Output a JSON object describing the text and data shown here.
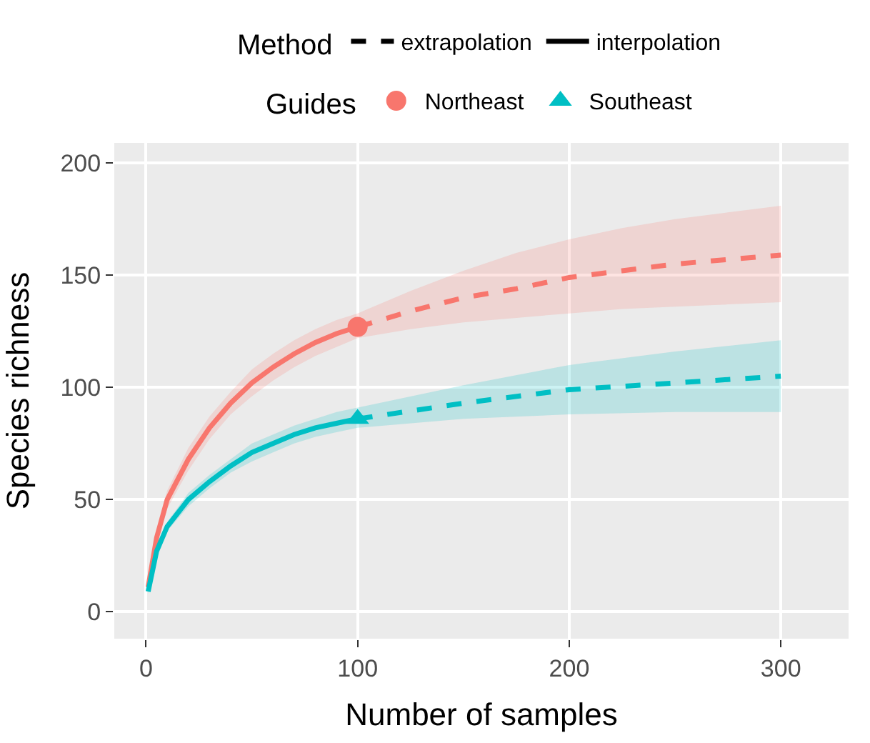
{
  "chart_data": {
    "type": "line",
    "xlabel": "Number of samples",
    "ylabel": "Species richness",
    "legend_title": [
      "Method",
      "Guides"
    ],
    "legend": "top",
    "xlim": [
      -15,
      332
    ],
    "ylim": [
      -12,
      209
    ],
    "xticks": [
      0,
      100,
      200,
      300
    ],
    "yticks": [
      0,
      50,
      100,
      150,
      200
    ],
    "grid": true,
    "series": [
      {
        "name": "interpolation",
        "color": "#000000",
        "line_style": "solid"
      },
      {
        "name": "extrapolation",
        "color": "#000000",
        "line_style": "dashed"
      },
      {
        "color": "#f8766d",
        "line_style": "solid",
        "x": [
          1,
          5,
          10,
          20,
          30,
          40,
          50,
          60,
          70,
          80,
          90,
          100
        ],
        "values": [
          11,
          33,
          50,
          68,
          82,
          93,
          102,
          109,
          115,
          120,
          124,
          127
        ],
        "lower": [
          9,
          30,
          46,
          63,
          77,
          88,
          96,
          103,
          109,
          114,
          118,
          122
        ],
        "upper": [
          13,
          36,
          54,
          73,
          87,
          98,
          108,
          115,
          121,
          126,
          130,
          133
        ]
      },
      {
        "color": "#f8766d",
        "line_style": "dashed",
        "x": [
          100,
          125,
          150,
          175,
          200,
          225,
          250,
          275,
          300
        ],
        "values": [
          127,
          134,
          140,
          144,
          149,
          152,
          155,
          157,
          159
        ],
        "lower": [
          122,
          126,
          129,
          131,
          133,
          135,
          136,
          137,
          138
        ],
        "upper": [
          133,
          143,
          152,
          160,
          166,
          171,
          175,
          178,
          181
        ]
      },
      {
        "name": "Northeast",
        "type": "scatter",
        "marker": "circle",
        "color": "#f8766d",
        "x": [
          100
        ],
        "values": [
          127
        ]
      },
      {
        "color": "#00bfc4",
        "line_style": "solid",
        "x": [
          1,
          5,
          10,
          20,
          30,
          40,
          50,
          60,
          70,
          80,
          90,
          100
        ],
        "values": [
          9,
          27,
          38,
          50,
          58,
          65,
          71,
          75,
          79,
          82,
          84,
          86
        ],
        "lower": [
          8,
          25,
          36,
          47,
          55,
          62,
          67,
          71,
          75,
          78,
          80,
          82
        ],
        "upper": [
          10,
          29,
          40,
          53,
          61,
          68,
          75,
          79,
          83,
          86,
          89,
          91
        ]
      },
      {
        "color": "#00bfc4",
        "line_style": "dashed",
        "x": [
          100,
          150,
          200,
          250,
          300
        ],
        "values": [
          86,
          93,
          99,
          102,
          105
        ],
        "lower": [
          82,
          86,
          88,
          89,
          89
        ],
        "upper": [
          91,
          101,
          110,
          116,
          121
        ]
      },
      {
        "name": "Southeast",
        "type": "scatter",
        "marker": "triangle",
        "color": "#00bfc4",
        "x": [
          100
        ],
        "values": [
          86
        ]
      }
    ]
  }
}
